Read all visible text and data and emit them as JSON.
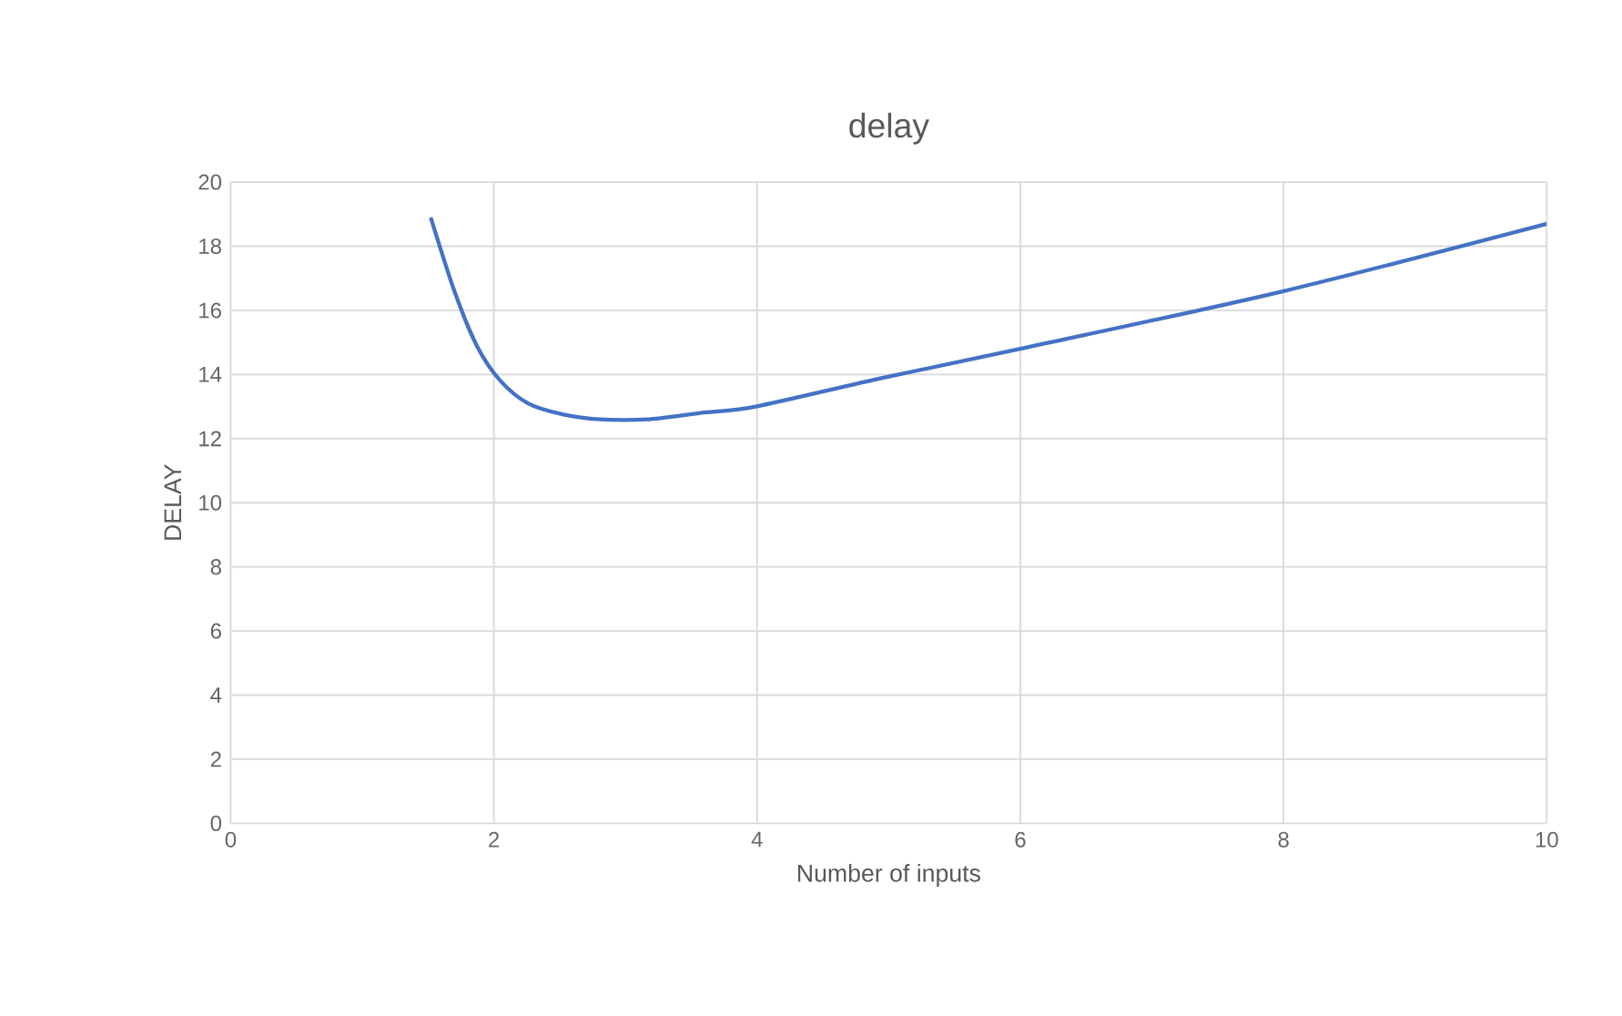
{
  "chart_data": {
    "type": "line",
    "title": "delay",
    "xlabel": "Number of inputs",
    "ylabel": "DELAY",
    "x": [
      1.52,
      1.7,
      1.87,
      2.05,
      2.26,
      2.53,
      2.81,
      3.16,
      3.57,
      3.99,
      4.96,
      6.0,
      8.0,
      10.0
    ],
    "series": [
      {
        "color": "#4472c4",
        "values": [
          18.9,
          16.6,
          14.9,
          13.8,
          13.1,
          12.75,
          12.6,
          12.6,
          12.8,
          13.0,
          13.9,
          14.8,
          16.6,
          18.7
        ]
      }
    ],
    "xlim": [
      0,
      10
    ],
    "ylim": [
      0,
      20
    ],
    "xticks": [
      0,
      2,
      4,
      6,
      8,
      10
    ],
    "yticks": [
      0,
      2,
      4,
      6,
      8,
      10,
      12,
      14,
      16,
      18,
      20
    ],
    "grid": true
  }
}
